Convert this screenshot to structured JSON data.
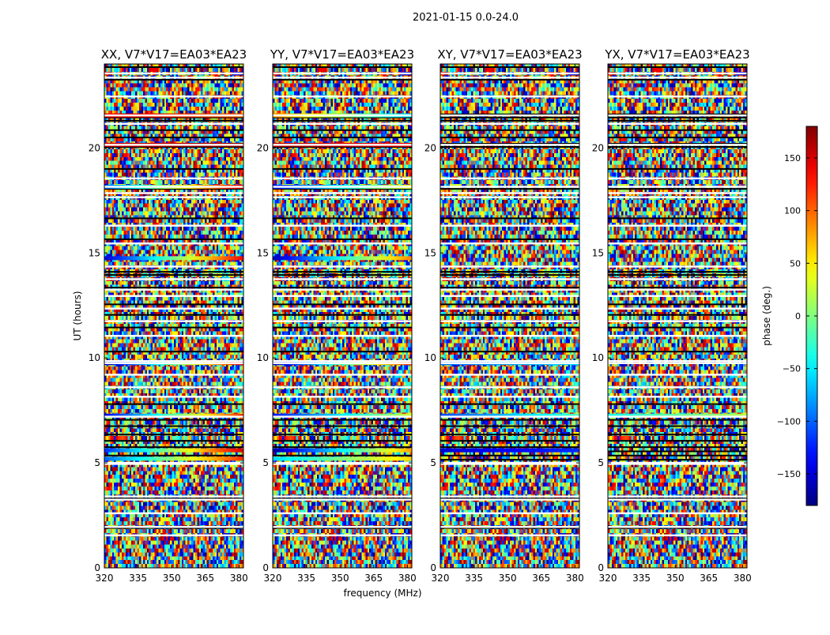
{
  "suptitle": "2021-01-15 0.0-24.0",
  "chart_data": {
    "type": "heatmap",
    "xlabel": "frequency (MHz)",
    "ylabel": "UT (hours)",
    "colorbar_label": "phase (deg.)",
    "colormap": "jet",
    "colorbar_range": [
      -180,
      180
    ],
    "colorbar_ticks": [
      -150,
      -100,
      -50,
      0,
      50,
      100,
      150
    ],
    "colorbar_ticklabels": [
      "−150",
      "−100",
      "−50",
      "0",
      "50",
      "100",
      "150"
    ],
    "xlim": [
      320,
      382
    ],
    "ylim": [
      0,
      24
    ],
    "xticks": [
      320,
      335,
      350,
      365,
      380
    ],
    "yticks": [
      0,
      5,
      10,
      15,
      20
    ],
    "panels": [
      {
        "title": "XX, V7*V17=EA03*EA23"
      },
      {
        "title": "YY, V7*V17=EA03*EA23"
      },
      {
        "title": "XY, V7*V17=EA03*EA23"
      },
      {
        "title": "YX, V7*V17=EA03*EA23"
      }
    ],
    "flagged_ut": [
      1.55,
      1.95,
      2.6,
      3.25,
      3.4,
      4.95,
      5.0,
      7.2,
      8.15,
      8.6,
      9.2,
      9.75,
      9.85,
      11.05,
      11.75,
      12.35,
      12.95,
      13.25,
      13.75,
      14.35,
      15.45,
      16.3,
      17.65,
      17.85,
      18.15,
      18.55,
      20.15,
      21.15,
      21.55,
      22.45,
      23.35,
      23.55
    ],
    "dark_ut": [
      1.9,
      3.3,
      5.15,
      5.35,
      5.55,
      5.75,
      6.05,
      6.35,
      6.75,
      7.05,
      7.8,
      10.3,
      11.45,
      12.05,
      12.55,
      13.35,
      13.95,
      14.1,
      15.65,
      16.65,
      18.05,
      19.0,
      20.05,
      20.2,
      20.5,
      20.85,
      21.3,
      21.45,
      21.6,
      23.25,
      23.85
    ],
    "coherent_phase": {
      "XX": [
        {
          "ut": 21.55,
          "phase": [
            140,
            100
          ]
        },
        {
          "ut": 20.15,
          "phase": [
            150,
            170
          ]
        },
        {
          "ut": 18.15,
          "phase": [
            -100,
            150
          ]
        },
        {
          "ut": 14.75,
          "phase": [
            -150,
            140
          ]
        },
        {
          "ut": 9.75,
          "phase": [
            -160,
            140
          ]
        },
        {
          "ut": 7.25,
          "phase": [
            -140,
            120
          ]
        },
        {
          "ut": 5.6,
          "phase": [
            -120,
            150
          ]
        },
        {
          "ut": 5.2,
          "phase": [
            -100,
            120
          ]
        }
      ],
      "YY": [
        {
          "ut": 21.55,
          "phase": [
            80,
            -60
          ]
        },
        {
          "ut": 20.15,
          "phase": [
            160,
            140
          ]
        },
        {
          "ut": 18.15,
          "phase": [
            -130,
            40
          ]
        },
        {
          "ut": 14.75,
          "phase": [
            -160,
            90
          ]
        },
        {
          "ut": 9.75,
          "phase": [
            -160,
            120
          ]
        },
        {
          "ut": 7.25,
          "phase": [
            -130,
            30
          ]
        },
        {
          "ut": 5.6,
          "phase": [
            -170,
            80
          ]
        },
        {
          "ut": 5.2,
          "phase": [
            -60,
            60
          ]
        }
      ],
      "XY": [
        {
          "ut": 9.75,
          "phase": [
            -100,
            -60
          ]
        },
        {
          "ut": 7.25,
          "phase": [
            -110,
            -20
          ]
        },
        {
          "ut": 5.6,
          "phase": [
            -150,
            -120
          ]
        }
      ],
      "YX": [
        {
          "ut": 7.25,
          "phase": [
            -40,
            20
          ]
        }
      ]
    }
  }
}
